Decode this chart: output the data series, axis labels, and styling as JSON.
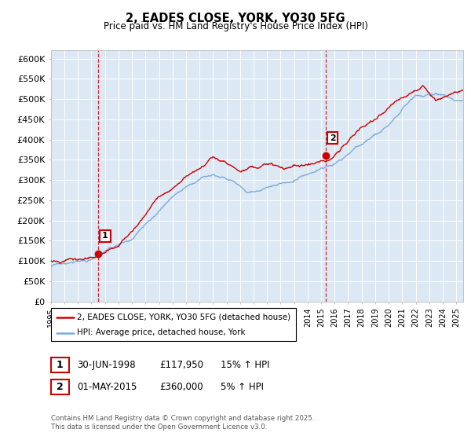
{
  "title": "2, EADES CLOSE, YORK, YO30 5FG",
  "subtitle": "Price paid vs. HM Land Registry's House Price Index (HPI)",
  "background_color": "#ffffff",
  "plot_bg_color": "#dde8f5",
  "grid_color": "#ffffff",
  "ylim": [
    0,
    620000
  ],
  "yticks": [
    0,
    50000,
    100000,
    150000,
    200000,
    250000,
    300000,
    350000,
    400000,
    450000,
    500000,
    550000,
    600000
  ],
  "ytick_labels": [
    "£0",
    "£50K",
    "£100K",
    "£150K",
    "£200K",
    "£250K",
    "£300K",
    "£350K",
    "£400K",
    "£450K",
    "£500K",
    "£550K",
    "£600K"
  ],
  "sale1_date_num": 1998.49,
  "sale1_price": 117950,
  "sale1_label": "1",
  "sale2_date_num": 2015.33,
  "sale2_price": 360000,
  "sale2_label": "2",
  "sale_color": "#cc0000",
  "line_color": "#cc0000",
  "hpi_color": "#7aaddc",
  "legend_line1": "2, EADES CLOSE, YORK, YO30 5FG (detached house)",
  "legend_line2": "HPI: Average price, detached house, York",
  "ann1_date": "30-JUN-1998",
  "ann1_price": "£117,950",
  "ann1_hpi": "15% ↑ HPI",
  "ann2_date": "01-MAY-2015",
  "ann2_price": "£360,000",
  "ann2_hpi": "5% ↑ HPI",
  "copyright_text": "Contains HM Land Registry data © Crown copyright and database right 2025.\nThis data is licensed under the Open Government Licence v3.0.",
  "xmin": 1995,
  "xmax": 2025.5,
  "xticks": [
    1995,
    1996,
    1997,
    1998,
    1999,
    2000,
    2001,
    2002,
    2003,
    2004,
    2005,
    2006,
    2007,
    2008,
    2009,
    2010,
    2011,
    2012,
    2013,
    2014,
    2015,
    2016,
    2017,
    2018,
    2019,
    2020,
    2021,
    2022,
    2023,
    2024,
    2025
  ]
}
